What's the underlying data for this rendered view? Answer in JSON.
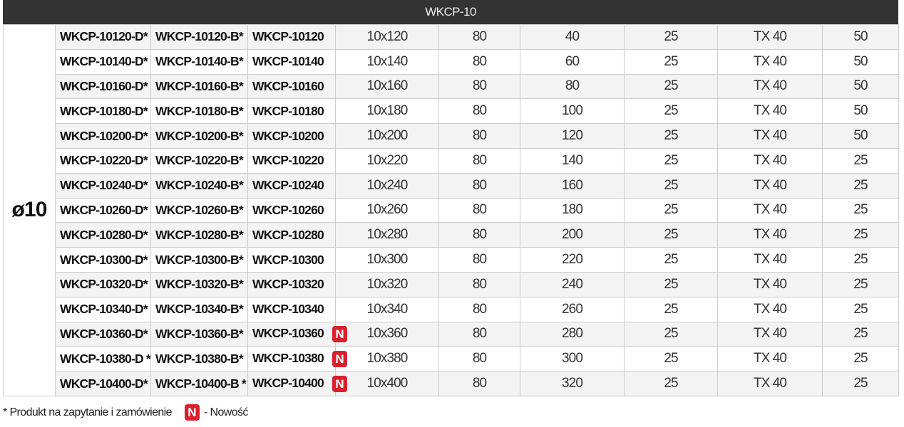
{
  "header": {
    "title": "WKCP-10"
  },
  "diameter": "ø10",
  "badge_label": "N",
  "colors": {
    "header_bg": "#333333",
    "badge": "#d8202f"
  },
  "rows": [
    [
      "WKCP-10120-D*",
      "WKCP-10120-B*",
      "WKCP-10120",
      false,
      "10x120",
      "80",
      "40",
      "25",
      "TX 40",
      "50"
    ],
    [
      "WKCP-10140-D*",
      "WKCP-10140-B*",
      "WKCP-10140",
      false,
      "10x140",
      "80",
      "60",
      "25",
      "TX 40",
      "50"
    ],
    [
      "WKCP-10160-D*",
      "WKCP-10160-B*",
      "WKCP-10160",
      false,
      "10x160",
      "80",
      "80",
      "25",
      "TX 40",
      "50"
    ],
    [
      "WKCP-10180-D*",
      "WKCP-10180-B*",
      "WKCP-10180",
      false,
      "10x180",
      "80",
      "100",
      "25",
      "TX 40",
      "50"
    ],
    [
      "WKCP-10200-D*",
      "WKCP-10200-B*",
      "WKCP-10200",
      false,
      "10x200",
      "80",
      "120",
      "25",
      "TX 40",
      "50"
    ],
    [
      "WKCP-10220-D*",
      "WKCP-10220-B*",
      "WKCP-10220",
      false,
      "10x220",
      "80",
      "140",
      "25",
      "TX 40",
      "25"
    ],
    [
      "WKCP-10240-D*",
      "WKCP-10240-B*",
      "WKCP-10240",
      false,
      "10x240",
      "80",
      "160",
      "25",
      "TX 40",
      "25"
    ],
    [
      "WKCP-10260-D*",
      "WKCP-10260-B*",
      "WKCP-10260",
      false,
      "10x260",
      "80",
      "180",
      "25",
      "TX 40",
      "25"
    ],
    [
      "WKCP-10280-D*",
      "WKCP-10280-B*",
      "WKCP-10280",
      false,
      "10x280",
      "80",
      "200",
      "25",
      "TX 40",
      "25"
    ],
    [
      "WKCP-10300-D*",
      "WKCP-10300-B*",
      "WKCP-10300",
      false,
      "10x300",
      "80",
      "220",
      "25",
      "TX 40",
      "25"
    ],
    [
      "WKCP-10320-D*",
      "WKCP-10320-B*",
      "WKCP-10320",
      false,
      "10x320",
      "80",
      "240",
      "25",
      "TX 40",
      "25"
    ],
    [
      "WKCP-10340-D*",
      "WKCP-10340-B*",
      "WKCP-10340",
      false,
      "10x340",
      "80",
      "260",
      "25",
      "TX 40",
      "25"
    ],
    [
      "WKCP-10360-D*",
      "WKCP-10360-B*",
      "WKCP-10360",
      true,
      "10x360",
      "80",
      "280",
      "25",
      "TX 40",
      "25"
    ],
    [
      "WKCP-10380-D *",
      "WKCP-10380-B*",
      "WKCP-10380",
      true,
      "10x380",
      "80",
      "300",
      "25",
      "TX 40",
      "25"
    ],
    [
      "WKCP-10400-D*",
      "WKCP-10400-B *",
      "WKCP-10400",
      true,
      "10x400",
      "80",
      "320",
      "25",
      "TX 40",
      "25"
    ]
  ],
  "footer": {
    "note": "* Produkt na zapytanie i zamówienie",
    "legend": "- Nowość"
  }
}
